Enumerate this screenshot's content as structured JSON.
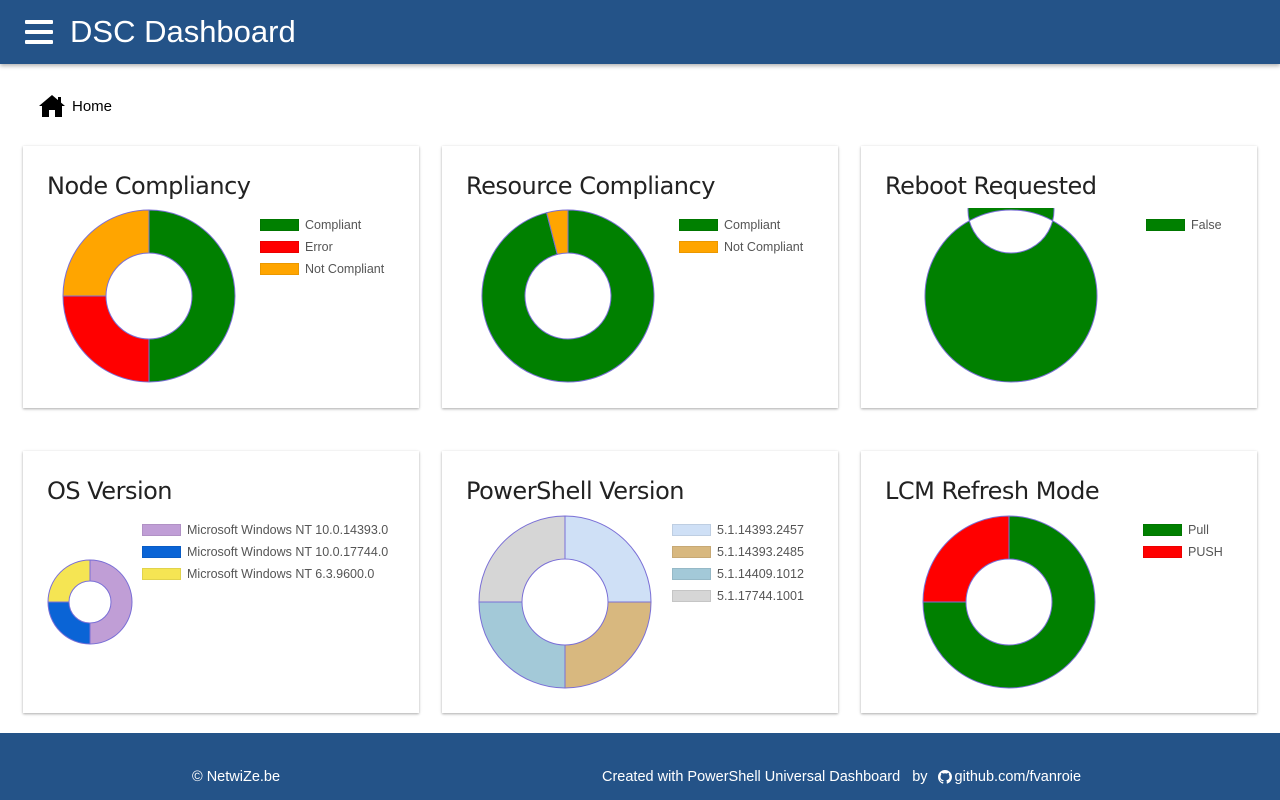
{
  "header": {
    "title": "DSC Dashboard"
  },
  "breadcrumb": {
    "home_label": "Home"
  },
  "footer": {
    "copyright": "© NetwiZe.be",
    "created_with": "Created with PowerShell Universal Dashboard",
    "by": "by",
    "github": "github.com/fvanroie"
  },
  "chart_data": [
    {
      "type": "doughnut",
      "title": "Node Compliancy",
      "categories": [
        "Compliant",
        "Error",
        "Not Compliant"
      ],
      "values": [
        2,
        1,
        1
      ],
      "colors": [
        "#008000",
        "#ff0000",
        "#ffa500"
      ],
      "legend": "right"
    },
    {
      "type": "doughnut",
      "title": "Resource Compliancy",
      "categories": [
        "Compliant",
        "Not Compliant"
      ],
      "values": [
        96,
        4
      ],
      "colors": [
        "#008000",
        "#ffa500"
      ],
      "legend": "right"
    },
    {
      "type": "doughnut",
      "title": "Reboot Requested",
      "categories": [
        "False"
      ],
      "values": [
        4
      ],
      "colors": [
        "#008000"
      ],
      "legend": "right"
    },
    {
      "type": "doughnut",
      "title": "OS Version",
      "categories": [
        "Microsoft Windows NT 10.0.14393.0",
        "Microsoft Windows NT 10.0.17744.0",
        "Microsoft Windows NT 6.3.9600.0"
      ],
      "values": [
        2,
        1,
        1
      ],
      "colors": [
        "#c09ed6",
        "#0a64d6",
        "#f5e553"
      ],
      "legend": "right"
    },
    {
      "type": "doughnut",
      "title": "PowerShell Version",
      "categories": [
        "5.1.14393.2457",
        "5.1.14393.2485",
        "5.1.14409.1012",
        "5.1.17744.1001"
      ],
      "values": [
        1,
        1,
        1,
        1
      ],
      "colors": [
        "#cfe0f6",
        "#d8b87f",
        "#a3c9d8",
        "#d6d6d6"
      ],
      "legend": "right"
    },
    {
      "type": "doughnut",
      "title": "LCM Refresh Mode",
      "categories": [
        "Pull",
        "PUSH"
      ],
      "values": [
        3,
        1
      ],
      "colors": [
        "#008000",
        "#ff0000"
      ],
      "legend": "right"
    }
  ]
}
